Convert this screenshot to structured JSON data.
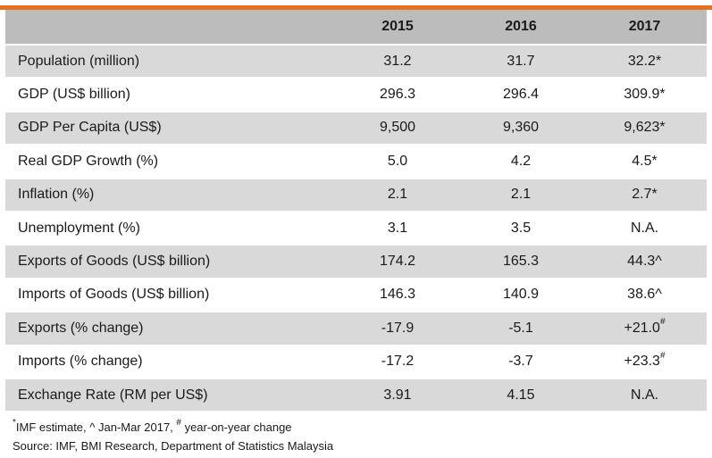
{
  "colors": {
    "accent_bar": "#e2701f",
    "header_bg": "#bcbcbc",
    "row_shade": "#d9d9d9"
  },
  "table": {
    "headers": [
      "",
      "2015",
      "2016",
      "2017"
    ],
    "rows": [
      {
        "label": "Population (million)",
        "v2015": "31.2",
        "v2016": "31.7",
        "v2017": "32.2",
        "v2017_mark": "*"
      },
      {
        "label": "GDP (US$ billion)",
        "v2015": "296.3",
        "v2016": "296.4",
        "v2017": "309.9",
        "v2017_mark": "*"
      },
      {
        "label": "GDP Per Capita (US$)",
        "v2015": "9,500",
        "v2016": "9,360",
        "v2017": "9,623",
        "v2017_mark": "*"
      },
      {
        "label": "Real GDP Growth (%)",
        "v2015": "5.0",
        "v2016": "4.2",
        "v2017": "4.5",
        "v2017_mark": "*"
      },
      {
        "label": "Inflation (%)",
        "v2015": "2.1",
        "v2016": "2.1",
        "v2017": "2.7",
        "v2017_mark": "*"
      },
      {
        "label": "Unemployment (%)",
        "v2015": "3.1",
        "v2016": "3.5",
        "v2017": "N.A.",
        "v2017_mark": ""
      },
      {
        "label": "Exports of Goods (US$ billion)",
        "v2015": "174.2",
        "v2016": "165.3",
        "v2017": "44.3",
        "v2017_mark": "^"
      },
      {
        "label": "Imports of Goods (US$ billion)",
        "v2015": "146.3",
        "v2016": "140.9",
        "v2017": "38.6",
        "v2017_mark": "^"
      },
      {
        "label": "Exports (% change)",
        "v2015": "-17.9",
        "v2016": "-5.1",
        "v2017": "+21.0",
        "v2017_mark": "#"
      },
      {
        "label": "Imports (% change)",
        "v2015": "-17.2",
        "v2016": "-3.7",
        "v2017": "+23.3",
        "v2017_mark": "#"
      },
      {
        "label": "Exchange Rate (RM per US$)",
        "v2015": "3.91",
        "v2016": "4.15",
        "v2017": "N.A.",
        "v2017_mark": ""
      }
    ]
  },
  "footnotes": {
    "star": "*",
    "star_text": "IMF estimate, ^ Jan-Mar 2017, ",
    "hash": "#",
    "hash_text": " year-on-year change",
    "source": "Source: IMF, BMI Research, Department of Statistics Malaysia"
  }
}
